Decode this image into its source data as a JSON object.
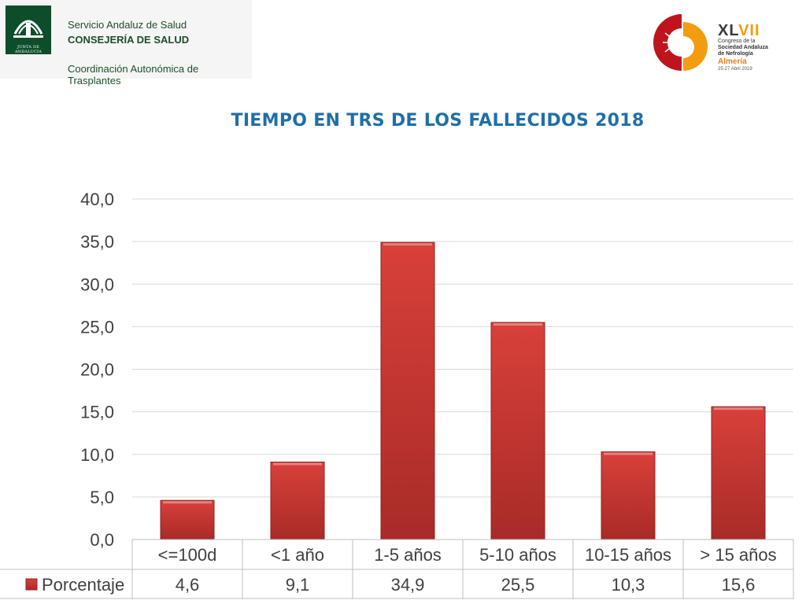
{
  "header": {
    "junta_caption": "JUNTA DE ANDALUCIA",
    "org_line1": "Servicio Andaluz de Salud",
    "org_line2": "CONSEJERÍA DE SALUD",
    "org_line3": "Coordinación Autonómica de Trasplantes",
    "congress": {
      "number_prefix": "XL",
      "number_accent": "VII",
      "line1": "Congreso de la",
      "line2": "Sociedad Andaluza",
      "line3": "de Nefrología",
      "city": "Almería",
      "date": "25-27 Abril 2019"
    }
  },
  "chart_data": {
    "type": "bar",
    "title": "TIEMPO EN TRS DE LOS FALLECIDOS 2018",
    "categories": [
      "<=100d",
      "<1 año",
      "1-5 años",
      "5-10 años",
      "10-15 años",
      "> 15 años"
    ],
    "series": [
      {
        "name": "Porcentaje",
        "values": [
          4.6,
          9.1,
          34.9,
          25.5,
          10.3,
          15.6
        ],
        "value_labels": [
          "4,6",
          "9,1",
          "34,9",
          "25,5",
          "10,3",
          "15,6"
        ]
      }
    ],
    "ylim": [
      0,
      40
    ],
    "yticks": [
      "0,0",
      "5,0",
      "10,0",
      "15,0",
      "20,0",
      "25,0",
      "30,0",
      "35,0",
      "40,0"
    ],
    "grid": true,
    "legend": "data-table-left",
    "bar_color": "#d9403a",
    "bar_color_dark": "#a82b28"
  }
}
